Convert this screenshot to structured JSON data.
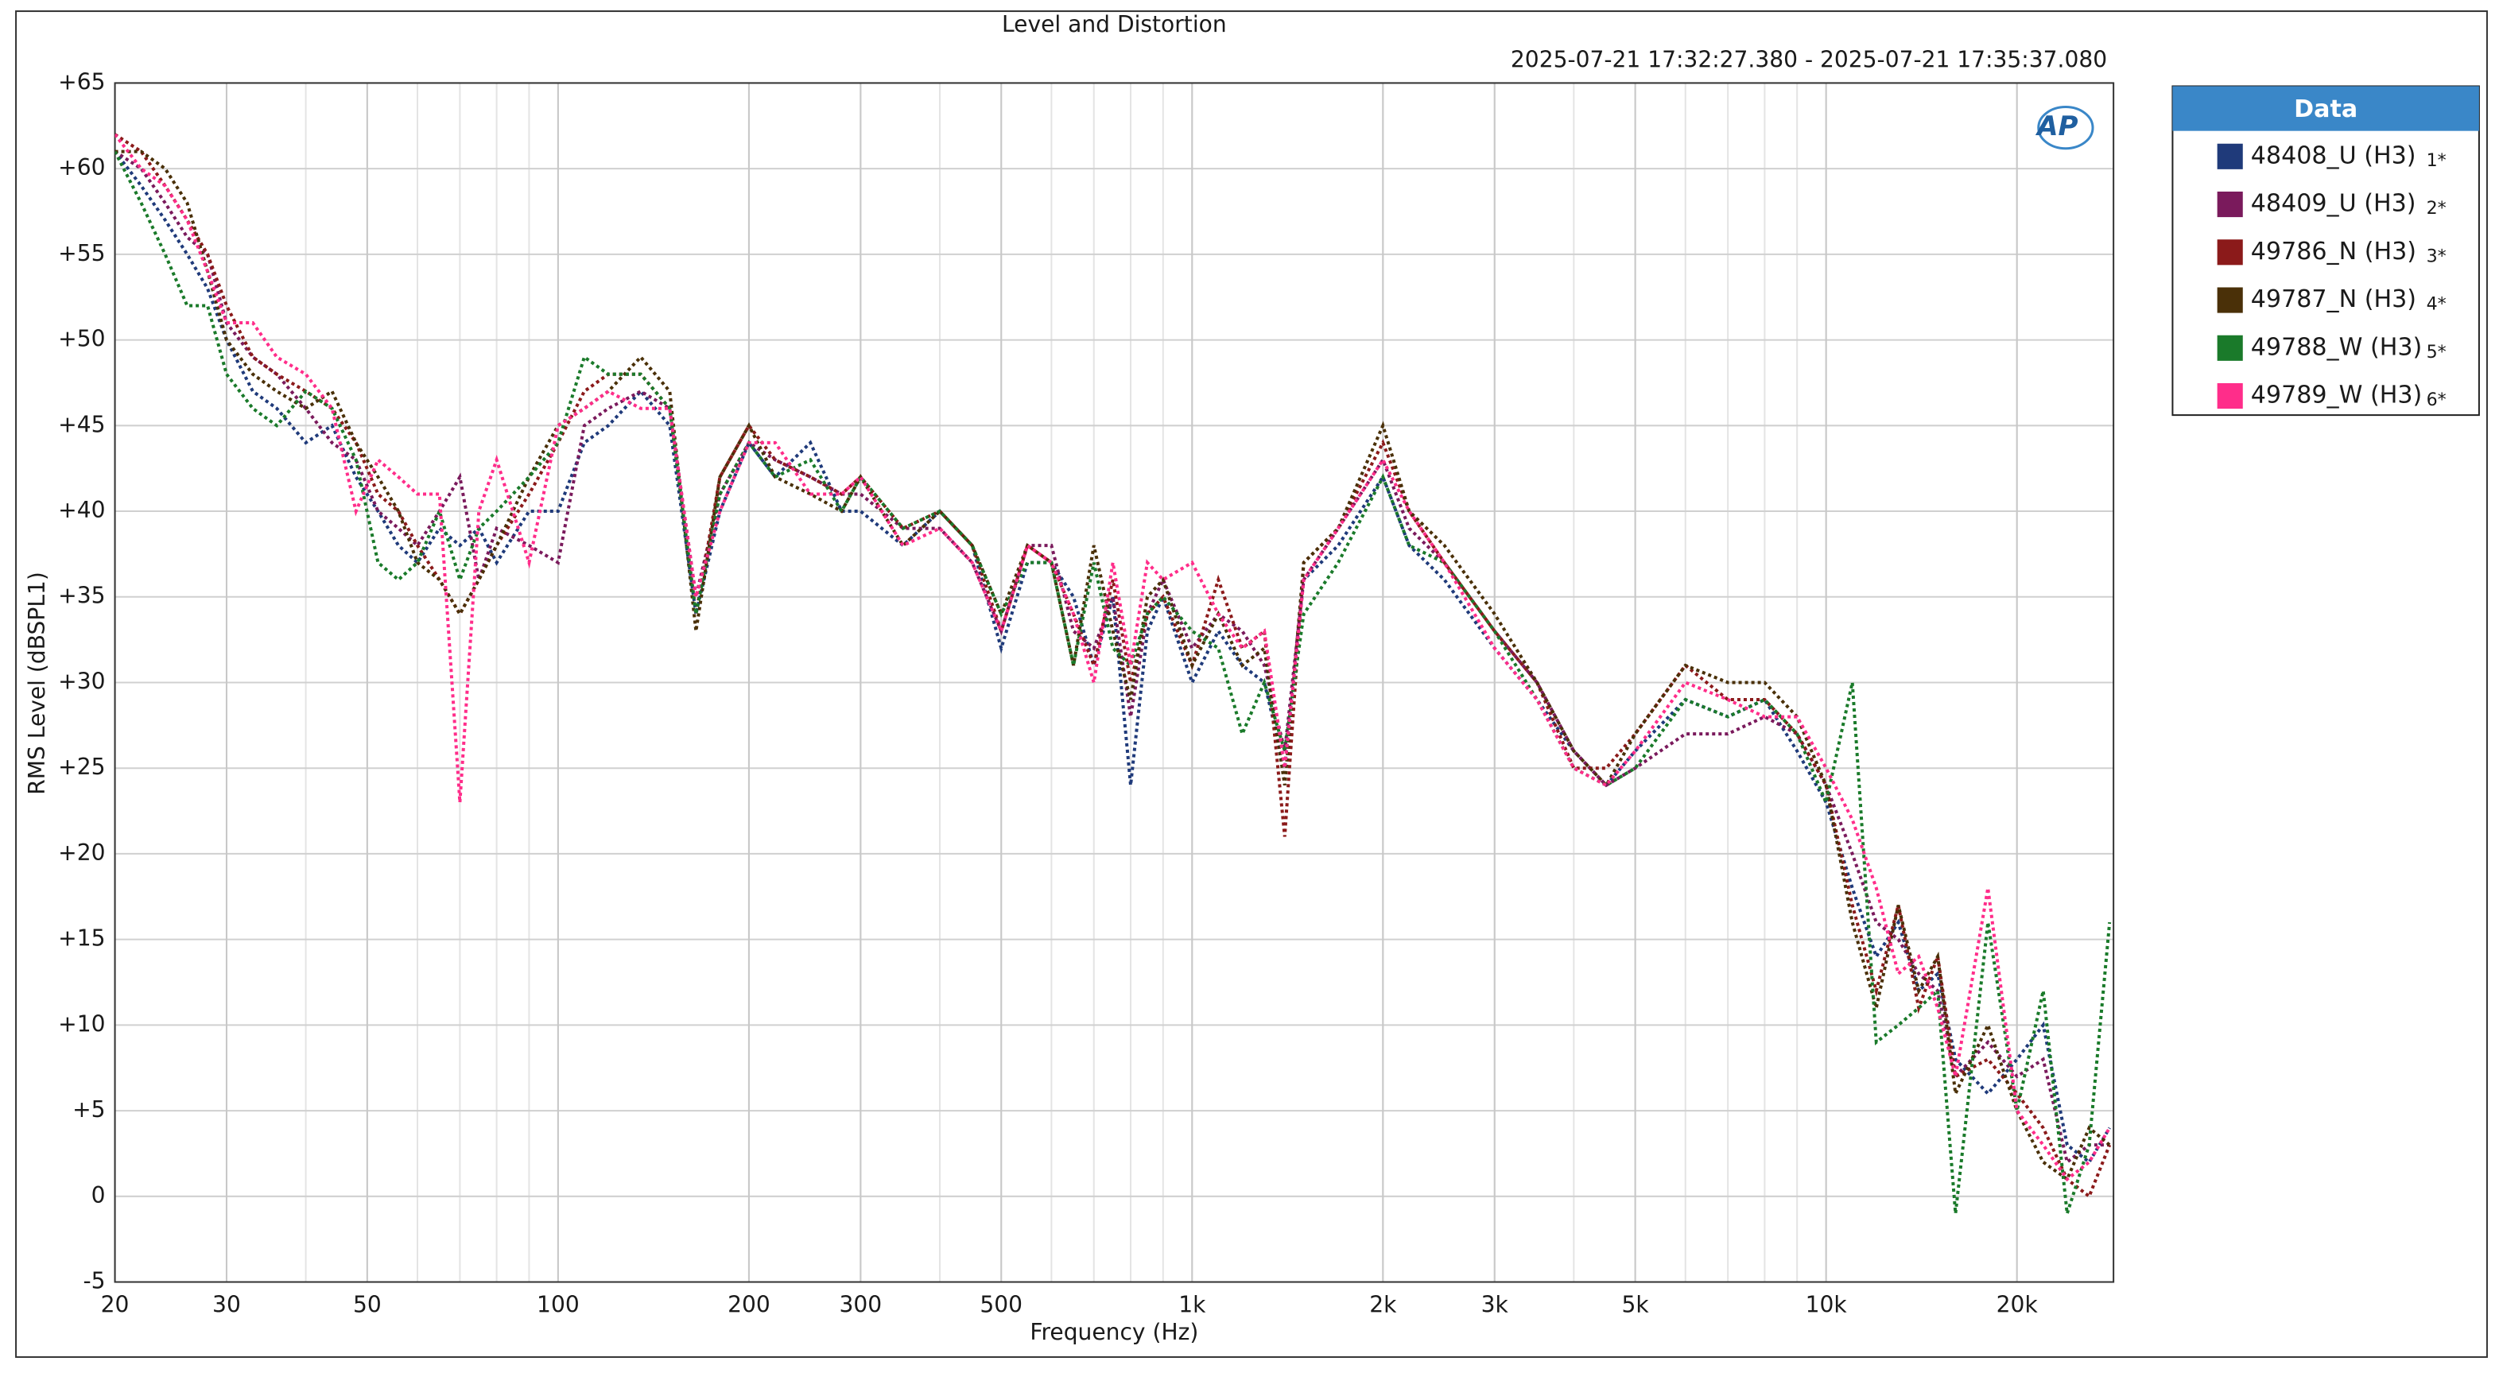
{
  "chart_data": {
    "type": "line",
    "title": "Level and Distortion",
    "subtitle": "2025-07-21 17:32:27.380 - 2025-07-21 17:35:37.080",
    "xlabel": "Frequency (Hz)",
    "ylabel": "RMS Level (dBSPL1)",
    "logo": "AP",
    "legend_title": "Data",
    "log_x": true,
    "grid": true,
    "minor_grid": true,
    "legend": "right",
    "line_style": "dotted",
    "xlim": [
      20,
      28400
    ],
    "ylim": [
      -5,
      65
    ],
    "xticks": [
      20,
      30,
      50,
      100,
      200,
      300,
      500,
      {
        "value": 1000,
        "label": "1k"
      },
      {
        "value": 2000,
        "label": "2k"
      },
      {
        "value": 3000,
        "label": "3k"
      },
      {
        "value": 5000,
        "label": "5k"
      },
      {
        "value": 10000,
        "label": "10k"
      },
      {
        "value": 20000,
        "label": "20k"
      }
    ],
    "yticks": [
      {
        "value": 65,
        "label": "+65"
      },
      {
        "value": 60,
        "label": "+60"
      },
      {
        "value": 55,
        "label": "+55"
      },
      {
        "value": 50,
        "label": "+50"
      },
      {
        "value": 45,
        "label": "+45"
      },
      {
        "value": 40,
        "label": "+40"
      },
      {
        "value": 35,
        "label": "+35"
      },
      {
        "value": 30,
        "label": "+30"
      },
      {
        "value": 25,
        "label": "+25"
      },
      {
        "value": 20,
        "label": "+20"
      },
      {
        "value": 15,
        "label": "+15"
      },
      {
        "value": 10,
        "label": "+10"
      },
      {
        "value": 5,
        "label": "+5"
      },
      0,
      -5
    ],
    "x": [
      20,
      22,
      24,
      26,
      28,
      30,
      33,
      36,
      40,
      44,
      48,
      52,
      56,
      60,
      65,
      70,
      75,
      80,
      90,
      100,
      110,
      120,
      135,
      150,
      165,
      180,
      200,
      220,
      250,
      280,
      300,
      350,
      400,
      450,
      500,
      550,
      600,
      650,
      700,
      750,
      800,
      850,
      900,
      1000,
      1100,
      1200,
      1300,
      1400,
      1500,
      1700,
      2000,
      2200,
      2500,
      3000,
      3500,
      4000,
      4500,
      5000,
      6000,
      7000,
      8000,
      9000,
      10000,
      11000,
      12000,
      13000,
      14000,
      15000,
      16000,
      18000,
      20000,
      22000,
      24000,
      26000,
      28000
    ],
    "series": [
      {
        "name": "48408_U (H3)",
        "tag": "1*",
        "color": "#1f3a7a",
        "values": [
          61,
          59,
          57,
          55,
          53,
          50,
          47,
          46,
          44,
          45,
          42,
          40,
          38,
          37,
          39,
          38,
          39,
          37,
          40,
          40,
          44,
          45,
          47,
          45,
          34,
          40,
          44,
          42,
          44,
          40,
          40,
          38,
          40,
          38,
          32,
          37,
          37,
          35,
          31,
          35,
          24,
          33,
          35,
          30,
          33,
          31,
          30,
          25,
          36,
          38,
          42,
          38,
          36,
          32,
          29,
          26,
          24,
          26,
          29,
          28,
          29,
          26,
          23,
          18,
          14,
          16,
          12,
          13,
          8,
          6,
          8,
          10,
          3,
          2,
          4
        ]
      },
      {
        "name": "48409_U (H3)",
        "tag": "2*",
        "color": "#7a1a5c",
        "values": [
          61,
          60,
          58,
          56,
          55,
          51,
          49,
          48,
          46,
          44,
          43,
          40,
          39,
          38,
          40,
          42,
          36,
          39,
          38,
          37,
          45,
          46,
          47,
          46,
          35,
          41,
          44,
          43,
          42,
          41,
          41,
          39,
          39,
          37,
          33,
          38,
          38,
          33,
          32,
          35,
          28,
          34,
          36,
          32,
          34,
          33,
          31,
          26,
          36,
          39,
          43,
          39,
          37,
          33,
          30,
          26,
          24,
          25,
          27,
          27,
          28,
          27,
          24,
          20,
          16,
          15,
          13,
          12,
          7,
          9,
          7,
          8,
          2,
          3,
          3
        ]
      },
      {
        "name": "49786_N (H3)",
        "tag": "3*",
        "color": "#8b1a1a",
        "values": [
          62,
          61,
          59,
          57,
          55,
          52,
          49,
          48,
          47,
          46,
          44,
          41,
          40,
          38,
          36,
          34,
          36,
          38,
          41,
          44,
          47,
          48,
          48,
          46,
          34,
          42,
          45,
          43,
          42,
          41,
          42,
          39,
          40,
          38,
          33,
          38,
          37,
          34,
          31,
          36,
          30,
          34,
          35,
          31,
          36,
          32,
          33,
          21,
          37,
          39,
          44,
          40,
          37,
          33,
          30,
          25,
          25,
          27,
          31,
          29,
          29,
          27,
          24,
          17,
          12,
          17,
          11,
          14,
          7,
          8,
          6,
          4,
          1,
          0,
          3
        ]
      },
      {
        "name": "49787_N (H3)",
        "tag": "4*",
        "color": "#4a3008",
        "values": [
          61,
          61,
          60,
          58,
          54,
          50,
          48,
          47,
          46,
          47,
          44,
          42,
          40,
          37,
          36,
          34,
          36,
          38,
          42,
          45,
          46,
          47,
          49,
          47,
          33,
          42,
          45,
          42,
          41,
          40,
          42,
          38,
          40,
          38,
          34,
          38,
          37,
          31,
          38,
          33,
          29,
          35,
          36,
          31,
          34,
          31,
          32,
          24,
          37,
          39,
          45,
          40,
          38,
          34,
          30,
          26,
          24,
          27,
          31,
          30,
          30,
          28,
          24,
          16,
          11,
          17,
          12,
          14,
          6,
          10,
          5,
          2,
          1,
          4,
          3
        ]
      },
      {
        "name": "49788_W (H3)",
        "tag": "5*",
        "color": "#1a7a2a",
        "values": [
          61,
          58,
          55,
          52,
          52,
          48,
          46,
          45,
          47,
          46,
          43,
          37,
          36,
          37,
          40,
          36,
          39,
          40,
          42,
          44,
          49,
          48,
          48,
          46,
          34,
          41,
          44,
          42,
          43,
          40,
          42,
          39,
          40,
          38,
          34,
          37,
          37,
          31,
          37,
          32,
          31,
          34,
          35,
          33,
          32,
          27,
          30,
          26,
          34,
          37,
          42,
          38,
          37,
          33,
          29,
          25,
          24,
          25,
          29,
          28,
          29,
          27,
          23,
          30,
          9,
          10,
          11,
          12,
          -1,
          16,
          5,
          12,
          -1,
          3,
          16
        ]
      },
      {
        "name": "49789_W (H3)",
        "tag": "6*",
        "color": "#ff2d8a",
        "values": [
          62,
          60,
          59,
          57,
          54,
          51,
          51,
          49,
          48,
          46,
          40,
          43,
          42,
          41,
          41,
          23,
          40,
          43,
          37,
          45,
          46,
          47,
          46,
          46,
          35,
          40,
          44,
          44,
          41,
          41,
          42,
          38,
          39,
          37,
          33,
          38,
          37,
          34,
          30,
          37,
          31,
          37,
          36,
          37,
          34,
          32,
          33,
          25,
          36,
          39,
          43,
          40,
          37,
          32,
          29,
          25,
          24,
          26,
          30,
          29,
          28,
          28,
          25,
          22,
          18,
          13,
          14,
          11,
          7,
          18,
          5,
          3,
          1,
          2,
          4
        ]
      }
    ]
  }
}
